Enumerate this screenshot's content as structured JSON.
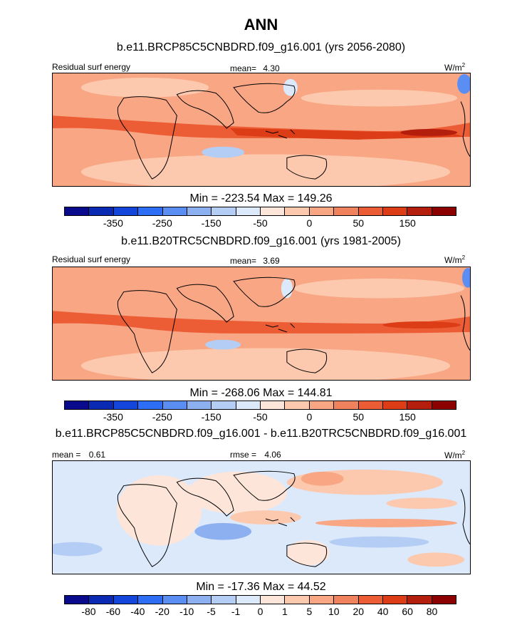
{
  "figure": {
    "title": "ANN",
    "colors": {
      "abs": [
        "#0a0a8c",
        "#0b2ab3",
        "#1446dc",
        "#2d6ef5",
        "#5a8ef2",
        "#8cb0f0",
        "#b4cdf5",
        "#dce9fb",
        "#fde6d9",
        "#fcc9ae",
        "#f8a684",
        "#f0825e",
        "#ec5d35",
        "#dc3c16",
        "#b41e0c",
        "#8c0000"
      ],
      "diff": [
        "#0a0a8c",
        "#0b2ab3",
        "#1446dc",
        "#2d6ef5",
        "#5a8ef2",
        "#8cb0f0",
        "#b4cdf5",
        "#dce9fb",
        "#fde6d9",
        "#fcc9ae",
        "#f8a684",
        "#f0825e",
        "#ec5d35",
        "#dc3c16",
        "#b41e0c",
        "#8c0000"
      ]
    },
    "icons": {
      "map": "world-map-contour-icon"
    }
  },
  "chart_data": [
    {
      "type": "heatmap",
      "title": "b.e11.BRCP85C5CNBDRD.f09_g16.001 (yrs 2056-2080)",
      "left_label": "Residual surf energy",
      "center_label": "mean=",
      "center_value": "4.30",
      "units_base": "W/m",
      "units_exp": "2",
      "min_max": "Min = -223.54 Max = 149.26",
      "colorbar_labels": [
        "-350",
        "-250",
        "-150",
        "-50",
        "0",
        "50",
        "150"
      ],
      "mean": 4.3,
      "min": -223.54,
      "max": 149.26
    },
    {
      "type": "heatmap",
      "title": "b.e11.B20TRC5CNBDRD.f09_g16.001 (yrs 1981-2005)",
      "left_label": "Residual surf energy",
      "center_label": "mean=",
      "center_value": "3.69",
      "units_base": "W/m",
      "units_exp": "2",
      "min_max": "Min = -268.06 Max = 144.81",
      "colorbar_labels": [
        "-350",
        "-250",
        "-150",
        "-50",
        "0",
        "50",
        "150"
      ],
      "mean": 3.69,
      "min": -268.06,
      "max": 144.81
    },
    {
      "type": "heatmap",
      "title": "b.e11.BRCP85C5CNBDRD.f09_g16.001 - b.e11.B20TRC5CNBDRD.f09_g16.001",
      "left_label": "mean =",
      "left_value": "0.61",
      "center_label": "rmse =",
      "center_value": "4.06",
      "units_base": "W/m",
      "units_exp": "2",
      "min_max": "Min = -17.36 Max =  44.52",
      "colorbar_labels": [
        "-80",
        "-60",
        "-40",
        "-20",
        "-10",
        "-5",
        "-1",
        "0",
        "1",
        "5",
        "10",
        "20",
        "40",
        "60",
        "80"
      ],
      "mean": 0.61,
      "rmse": 4.06,
      "min": -17.36,
      "max": 44.52
    }
  ]
}
